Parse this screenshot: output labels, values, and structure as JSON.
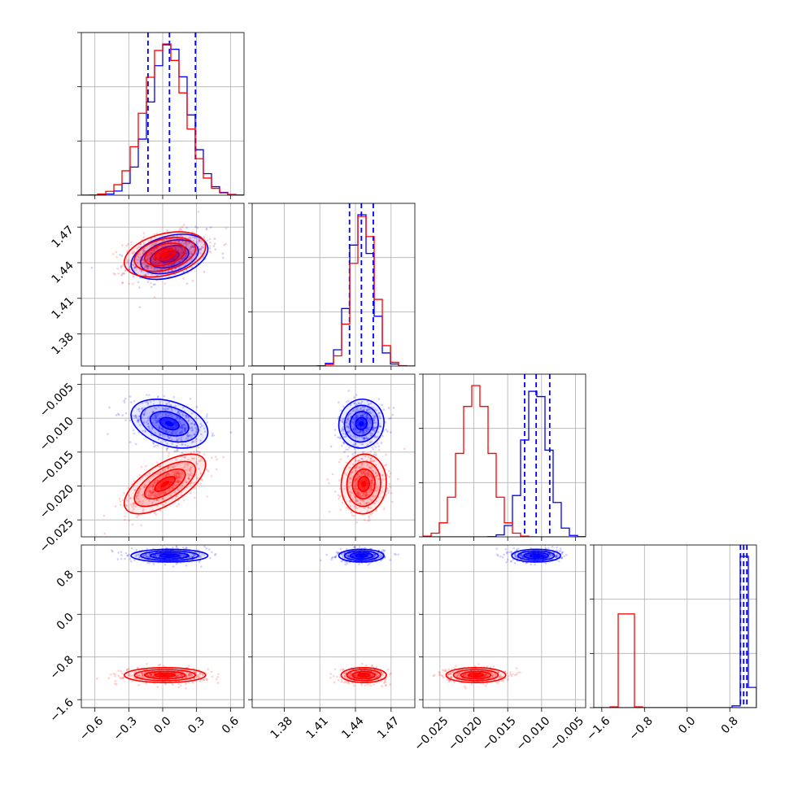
{
  "chart_data": {
    "type": "corner",
    "parameters": [
      {
        "range": [
          -0.72,
          0.72
        ],
        "ticks": [
          -0.6,
          -0.3,
          0.0,
          0.3,
          0.6
        ],
        "tick_labels": [
          "−0.6",
          "−0.3",
          "0.0",
          "0.3",
          "0.6"
        ]
      },
      {
        "range": [
          1.353,
          1.49
        ],
        "ticks": [
          1.38,
          1.41,
          1.44,
          1.47
        ],
        "tick_labels": [
          "1.38",
          "1.41",
          "1.44",
          "1.47"
        ]
      },
      {
        "range": [
          -0.0275,
          -0.0035
        ],
        "ticks": [
          -0.025,
          -0.02,
          -0.015,
          -0.01,
          -0.005
        ],
        "tick_labels": [
          "−0.025",
          "−0.020",
          "−0.015",
          "−0.010",
          "−0.005"
        ]
      },
      {
        "range": [
          -1.75,
          1.3
        ],
        "ticks": [
          -1.6,
          -0.8,
          0.0,
          0.8
        ],
        "tick_labels": [
          "−1.6",
          "−0.8",
          "0.0",
          "0.8"
        ]
      }
    ],
    "series": [
      {
        "color": "#0000ff",
        "means": [
          0.06,
          1.445,
          -0.0108,
          1.1
        ],
        "sds": [
          0.17,
          0.0095,
          0.0018,
          0.06
        ],
        "quantile_lines": [
          [
            -0.13,
            0.06,
            0.29
          ],
          [
            1.435,
            1.445,
            1.455
          ],
          [
            -0.0125,
            -0.0108,
            -0.0088
          ],
          [
            1.0,
            1.06,
            1.12
          ]
        ]
      },
      {
        "color": "#ff0000",
        "means": [
          0.02,
          1.447,
          -0.0197,
          -1.14
        ],
        "sds": [
          0.18,
          0.0095,
          0.0022,
          0.07
        ],
        "quantile_lines": null
      }
    ],
    "legend": null,
    "grid": true
  }
}
